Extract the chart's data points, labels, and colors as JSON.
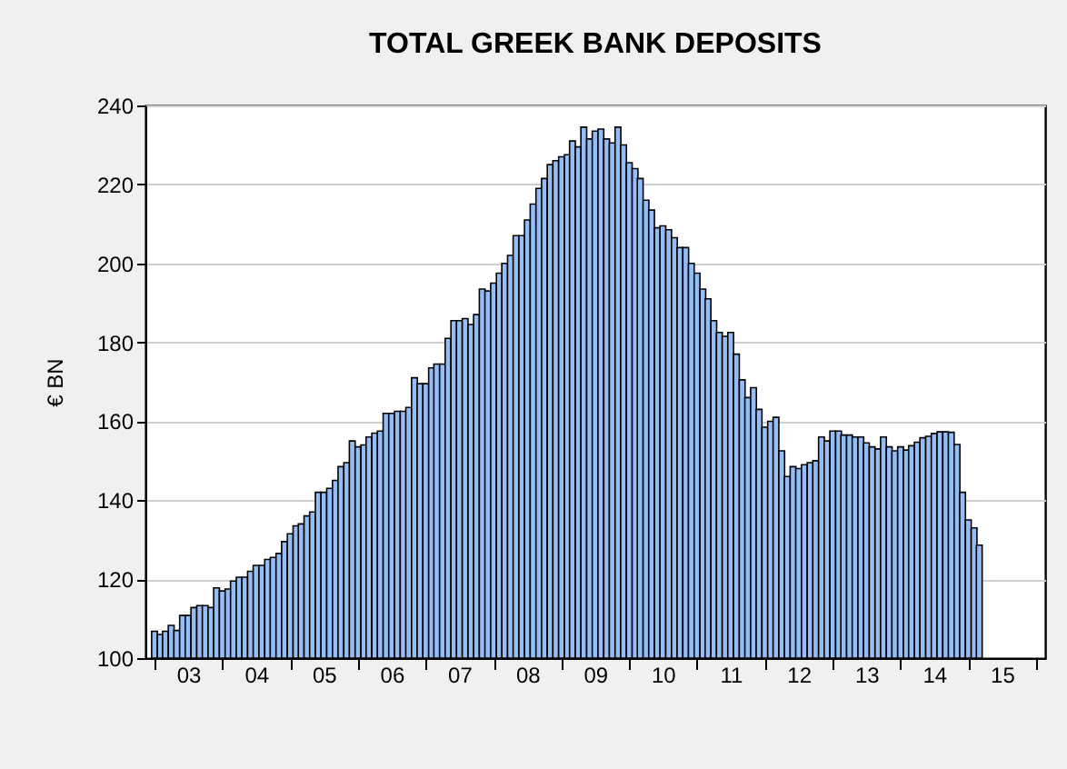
{
  "chart_data": {
    "type": "bar",
    "title": "TOTAL GREEK BANK DEPOSITS",
    "ylabel": "€ BN",
    "color": "#94bdf5",
    "x": [
      "2003-01",
      "2003-02",
      "2003-03",
      "2003-04",
      "2003-05",
      "2003-06",
      "2003-07",
      "2003-08",
      "2003-09",
      "2003-10",
      "2003-11",
      "2003-12",
      "2004-01",
      "2004-02",
      "2004-03",
      "2004-04",
      "2004-05",
      "2004-06",
      "2004-07",
      "2004-08",
      "2004-09",
      "2004-10",
      "2004-11",
      "2004-12",
      "2005-01",
      "2005-02",
      "2005-03",
      "2005-04",
      "2005-05",
      "2005-06",
      "2005-07",
      "2005-08",
      "2005-09",
      "2005-10",
      "2005-11",
      "2005-12",
      "2006-01",
      "2006-02",
      "2006-03",
      "2006-04",
      "2006-05",
      "2006-06",
      "2006-07",
      "2006-08",
      "2006-09",
      "2006-10",
      "2006-11",
      "2006-12",
      "2007-01",
      "2007-02",
      "2007-03",
      "2007-04",
      "2007-05",
      "2007-06",
      "2007-07",
      "2007-08",
      "2007-09",
      "2007-10",
      "2007-11",
      "2007-12",
      "2008-01",
      "2008-02",
      "2008-03",
      "2008-04",
      "2008-05",
      "2008-06",
      "2008-07",
      "2008-08",
      "2008-09",
      "2008-10",
      "2008-11",
      "2008-12",
      "2009-01",
      "2009-02",
      "2009-03",
      "2009-04",
      "2009-05",
      "2009-06",
      "2009-07",
      "2009-08",
      "2009-09",
      "2009-10",
      "2009-11",
      "2009-12",
      "2010-01",
      "2010-02",
      "2010-03",
      "2010-04",
      "2010-05",
      "2010-06",
      "2010-07",
      "2010-08",
      "2010-09",
      "2010-10",
      "2010-11",
      "2010-12",
      "2011-01",
      "2011-02",
      "2011-03",
      "2011-04",
      "2011-05",
      "2011-06",
      "2011-07",
      "2011-08",
      "2011-09",
      "2011-10",
      "2011-11",
      "2011-12",
      "2012-01",
      "2012-02",
      "2012-03",
      "2012-04",
      "2012-05",
      "2012-06",
      "2012-07",
      "2012-08",
      "2012-09",
      "2012-10",
      "2012-11",
      "2012-12",
      "2013-01",
      "2013-02",
      "2013-03",
      "2013-04",
      "2013-05",
      "2013-06",
      "2013-07",
      "2013-08",
      "2013-09",
      "2013-10",
      "2013-11",
      "2013-12",
      "2014-01",
      "2014-02",
      "2014-03",
      "2014-04",
      "2014-05",
      "2014-06",
      "2014-07",
      "2014-08",
      "2014-09",
      "2014-10",
      "2014-11",
      "2014-12",
      "2015-01",
      "2015-02",
      "2015-03"
    ],
    "values": [
      106.8,
      106,
      106.8,
      108.3,
      107,
      110.8,
      110.8,
      112.8,
      113.3,
      113.3,
      112.8,
      117.8,
      117,
      117.5,
      119.5,
      120.5,
      120.5,
      122,
      123.5,
      123.5,
      125,
      125.5,
      126.5,
      129.5,
      131.5,
      133.5,
      134,
      136,
      137,
      142,
      142,
      143,
      145,
      148.5,
      149.5,
      155,
      153.5,
      154,
      156,
      157,
      157.5,
      162,
      162,
      162.5,
      162.5,
      163.5,
      171,
      169.5,
      169.5,
      173.5,
      174.5,
      174.5,
      181,
      185.5,
      185.5,
      186,
      184.5,
      187,
      193.5,
      193,
      195,
      197.5,
      200,
      202,
      207,
      207,
      211,
      215,
      219,
      221.5,
      225,
      226,
      227,
      227.5,
      231,
      229.5,
      234.5,
      231.5,
      233.5,
      234,
      231.5,
      230.5,
      234.5,
      230,
      225.5,
      224,
      221.5,
      216,
      213.5,
      209,
      209.5,
      208.5,
      206.5,
      204,
      204,
      200,
      197.5,
      193.5,
      191,
      185.5,
      182.5,
      181.5,
      182.5,
      177,
      170.5,
      166,
      168.5,
      163,
      158.5,
      160,
      161,
      152.5,
      146,
      148.5,
      148,
      149,
      149.5,
      150,
      156,
      155,
      157.5,
      157.5,
      156.5,
      156.5,
      156,
      156,
      154.5,
      153.5,
      153,
      156,
      153.5,
      152.5,
      153.5,
      152.7,
      153.8,
      154.7,
      155.8,
      156.2,
      156.9,
      157.3,
      157.3,
      157.2,
      154.1,
      142,
      135,
      133,
      128.6
    ],
    "xlim": [
      "2003-01",
      "2016-01"
    ],
    "xticks": [
      {
        "value": "2003-01",
        "label": null
      },
      {
        "value": "2003-07",
        "label": "03"
      },
      {
        "value": "2004-01",
        "label": null
      },
      {
        "value": "2004-07",
        "label": "04"
      },
      {
        "value": "2005-01",
        "label": null
      },
      {
        "value": "2005-07",
        "label": "05"
      },
      {
        "value": "2006-01",
        "label": null
      },
      {
        "value": "2006-07",
        "label": "06"
      },
      {
        "value": "2007-01",
        "label": null
      },
      {
        "value": "2007-07",
        "label": "07"
      },
      {
        "value": "2008-01",
        "label": null
      },
      {
        "value": "2008-07",
        "label": "08"
      },
      {
        "value": "2009-01",
        "label": null
      },
      {
        "value": "2009-07",
        "label": "09"
      },
      {
        "value": "2010-01",
        "label": null
      },
      {
        "value": "2010-07",
        "label": "10"
      },
      {
        "value": "2011-01",
        "label": null
      },
      {
        "value": "2011-07",
        "label": "11"
      },
      {
        "value": "2012-01",
        "label": null
      },
      {
        "value": "2012-07",
        "label": "12"
      },
      {
        "value": "2013-01",
        "label": null
      },
      {
        "value": "2013-07",
        "label": "13"
      },
      {
        "value": "2014-01",
        "label": null
      },
      {
        "value": "2014-07",
        "label": "14"
      },
      {
        "value": "2015-01",
        "label": null
      },
      {
        "value": "2015-07",
        "label": "15"
      },
      {
        "value": "2016-01",
        "label": null
      }
    ],
    "ylim": [
      100,
      240
    ],
    "yticks": [
      100,
      120,
      140,
      160,
      180,
      200,
      220,
      240
    ],
    "grid": "y"
  }
}
